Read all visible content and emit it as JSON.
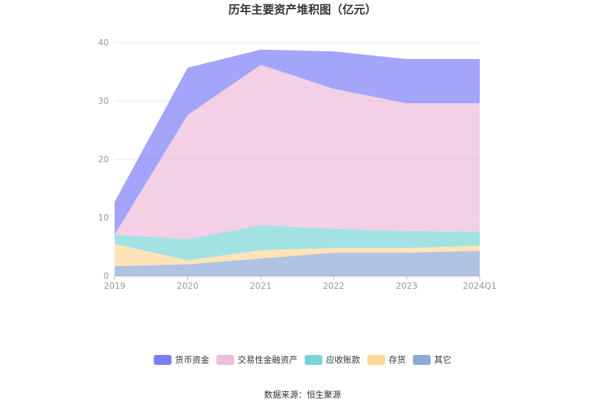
{
  "chart_data": {
    "type": "area",
    "stacked": true,
    "title": "历年主要资产堆积图（亿元）",
    "categories": [
      "2019",
      "2020",
      "2021",
      "2022",
      "2023",
      "2024Q1"
    ],
    "ylim": [
      0,
      40
    ],
    "yticks": [
      0,
      10,
      20,
      30,
      40
    ],
    "grid": true,
    "legend_position": "bottom",
    "series": [
      {
        "name": "其它",
        "color": "#8fa9d7",
        "values": [
          1.7,
          2.0,
          3.0,
          4.0,
          4.0,
          4.3
        ]
      },
      {
        "name": "存货",
        "color": "#fdd897",
        "values": [
          3.8,
          0.7,
          1.4,
          0.8,
          0.8,
          0.9
        ]
      },
      {
        "name": "应收账款",
        "color": "#7ad6d6",
        "values": [
          1.6,
          3.6,
          4.3,
          3.3,
          2.9,
          2.4
        ]
      },
      {
        "name": "交易性金融资产",
        "color": "#eebcdc",
        "values": [
          0.0,
          21.3,
          27.5,
          24.0,
          21.9,
          22.0
        ]
      },
      {
        "name": "货币资金",
        "color": "#7b7ff7",
        "values": [
          5.6,
          8.1,
          2.6,
          6.4,
          7.6,
          7.6
        ]
      }
    ],
    "legend_order": [
      "货币资金",
      "交易性金融资产",
      "应收账款",
      "存货",
      "其它"
    ],
    "source": "数据来源：恒生聚源"
  }
}
